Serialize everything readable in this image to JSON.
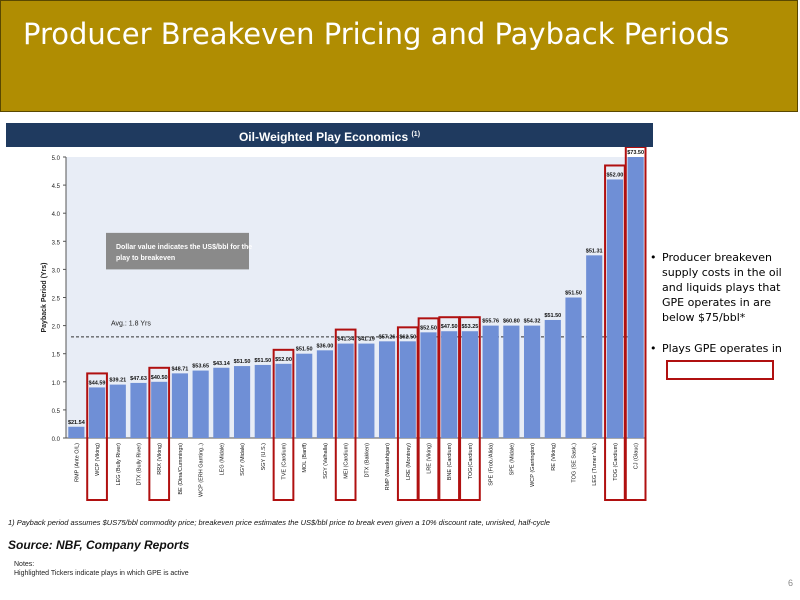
{
  "slide": {
    "title": "Producer Breakeven Pricing and Payback Periods",
    "page_number": "6"
  },
  "chart_heading": {
    "text": "Oil-Weighted Play Economics",
    "superscript": "(1)"
  },
  "bullets": [
    "Producer breakeven supply costs in the oil and liquids plays that GPE operates in are below $75/bbl*",
    "Plays GPE operates in"
  ],
  "notes": {
    "heading": "Notes:",
    "line1": "Highlighted Tickers indicate plays in which GPE is active"
  },
  "colors": {
    "header": "#b08d02",
    "banner": "#1f3a5f",
    "bar": "#6f8fd6",
    "highlight": "#b01010",
    "plot_bg": "#e8edf6"
  },
  "chart_data": {
    "type": "bar",
    "title": "Oil-Weighted Play Economics",
    "ylabel": "Payback Period (Yrs)",
    "ylim": [
      0,
      5.0
    ],
    "yticks": [
      "0.0",
      "0.5",
      "1.0",
      "1.5",
      "2.0",
      "2.5",
      "3.0",
      "3.5",
      "4.0",
      "4.5",
      "5.0"
    ],
    "avg_value": 1.8,
    "avg_label": "Avg.: 1.8 Yrs",
    "annotation": "Dollar value indicates the US$/bbl for the play to breakeven",
    "footnote": "1) Payback period assumes $US75/bbl commodity price; breakeven price estimates the US$/bbl price to break even given a 10% discount rate, unrisked, half-cycle",
    "source": "Source: NBF, Company Reports",
    "categories": [
      "RMP (Ante O/L)",
      "WCP (Viking)",
      "LEG (Bully River)",
      "DTX (Bully River)",
      "RRX (Viking)",
      "BE (Dina/Cummings)",
      "WCP (ERH Garrting..)",
      "LEG (Midale)",
      "SGY (Midale)",
      "SGY (U.S.)",
      "TVE (Cardium)",
      "MOL (Banff)",
      "SGY (Valhalla)",
      "MEI (Cardium)",
      "DTX (Bakken)",
      "RMP (Waskahigan)",
      "LRE (Montney)",
      "LRE (Viking)",
      "BNE (Cardium)",
      "TOG(Cardium)",
      "SPE (Frob./Alida)",
      "SPE (Midale)",
      "WCP (Garrington)",
      "RE (Viking)",
      "TOG (SE Sask.)",
      "LEG (Turner Val.)",
      "TOG (Cardium)",
      "CJ (Glauc)"
    ],
    "values": [
      0.2,
      0.9,
      0.95,
      0.98,
      1.0,
      1.15,
      1.2,
      1.25,
      1.28,
      1.3,
      1.32,
      1.5,
      1.56,
      1.68,
      1.68,
      1.72,
      1.72,
      1.88,
      1.9,
      1.9,
      2.0,
      2.0,
      2.0,
      2.1,
      2.5,
      3.25,
      4.6,
      5.0
    ],
    "labels": [
      "$21.54",
      "$44.59",
      "$39.21",
      "$47.63",
      "$40.50",
      "$48.71",
      "$53.65",
      "$43.14",
      "$51.50",
      "$51.50",
      "$52.00",
      "$51.50",
      "$36.00",
      "$41.34",
      "$41.19",
      "$57.26",
      "$62.50",
      "$52.50",
      "$47.50",
      "$53.25",
      "$55.76",
      "$60.80",
      "$54.32",
      "$51.50",
      "$51.50",
      "$51.31",
      "$52.00",
      "$73.50"
    ],
    "highlighted": [
      false,
      true,
      false,
      false,
      true,
      false,
      false,
      false,
      false,
      false,
      true,
      false,
      false,
      true,
      false,
      false,
      true,
      true,
      true,
      true,
      false,
      false,
      false,
      false,
      false,
      false,
      true,
      true
    ]
  }
}
